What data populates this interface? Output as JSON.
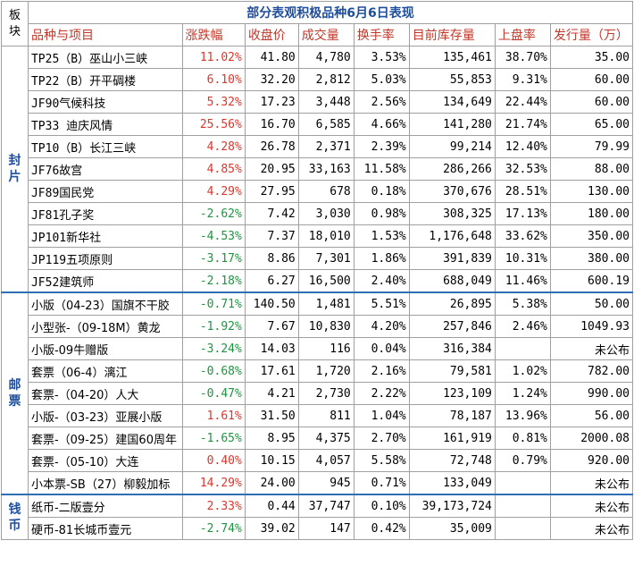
{
  "corner_label": "板块",
  "title": "部分表观积极品种6月6日表现",
  "headers": [
    "品种与项目",
    "涨跌幅",
    "收盘价",
    "成交量",
    "换手率",
    "目前库存量",
    "上盘率",
    "发行量（万）"
  ],
  "sections": [
    {
      "label": "封片",
      "rows": [
        {
          "name": "TP25（B）巫山小三峡",
          "change": "11.02%",
          "dir": "up",
          "close": "41.80",
          "volume": "4,780",
          "turnover": "3.53%",
          "stock": "135,461",
          "rate": "38.70%",
          "issue": "35.00"
        },
        {
          "name": "TP22（B）开平碉楼",
          "change": "6.10%",
          "dir": "up",
          "close": "32.20",
          "volume": "2,812",
          "turnover": "5.03%",
          "stock": "55,853",
          "rate": "9.31%",
          "issue": "60.00"
        },
        {
          "name": "JF90气候科技",
          "change": "5.32%",
          "dir": "up",
          "close": "17.23",
          "volume": "3,448",
          "turnover": "2.56%",
          "stock": "134,649",
          "rate": "22.44%",
          "issue": "60.00"
        },
        {
          "name": "TP33 迪庆风情",
          "change": "25.56%",
          "dir": "up",
          "close": "16.70",
          "volume": "6,585",
          "turnover": "4.66%",
          "stock": "141,280",
          "rate": "21.74%",
          "issue": "65.00"
        },
        {
          "name": "TP10（B）长江三峡",
          "change": "4.28%",
          "dir": "up",
          "close": "26.78",
          "volume": "2,371",
          "turnover": "2.39%",
          "stock": "99,214",
          "rate": "12.40%",
          "issue": "79.99"
        },
        {
          "name": "JF76故宫",
          "change": "4.85%",
          "dir": "up",
          "close": "20.95",
          "volume": "33,163",
          "turnover": "11.58%",
          "stock": "286,266",
          "rate": "32.53%",
          "issue": "88.00"
        },
        {
          "name": "JF89国民党",
          "change": "4.29%",
          "dir": "up",
          "close": "27.95",
          "volume": "678",
          "turnover": "0.18%",
          "stock": "370,676",
          "rate": "28.51%",
          "issue": "130.00"
        },
        {
          "name": "JF81孔子奖",
          "change": "-2.62%",
          "dir": "down",
          "close": "7.42",
          "volume": "3,030",
          "turnover": "0.98%",
          "stock": "308,325",
          "rate": "17.13%",
          "issue": "180.00"
        },
        {
          "name": "JP101新华社",
          "change": "-4.53%",
          "dir": "down",
          "close": "7.37",
          "volume": "18,010",
          "turnover": "1.53%",
          "stock": "1,176,648",
          "rate": "33.62%",
          "issue": "350.00"
        },
        {
          "name": "JP119五项原则",
          "change": "-3.17%",
          "dir": "down",
          "close": "8.86",
          "volume": "7,301",
          "turnover": "1.86%",
          "stock": "391,839",
          "rate": "10.31%",
          "issue": "380.00"
        },
        {
          "name": "JF52建筑师",
          "change": "-2.18%",
          "dir": "down",
          "close": "6.27",
          "volume": "16,500",
          "turnover": "2.40%",
          "stock": "688,049",
          "rate": "11.46%",
          "issue": "600.19"
        }
      ]
    },
    {
      "label": "邮票",
      "rows": [
        {
          "name": "小版（04-23）国旗不干胶",
          "change": "-0.71%",
          "dir": "down",
          "close": "140.50",
          "volume": "1,481",
          "turnover": "5.51%",
          "stock": "26,895",
          "rate": "5.38%",
          "issue": "50.00"
        },
        {
          "name": "小型张-（09-18M）黄龙",
          "change": "-1.92%",
          "dir": "down",
          "close": "7.67",
          "volume": "10,830",
          "turnover": "4.20%",
          "stock": "257,846",
          "rate": "2.46%",
          "issue": "1049.93"
        },
        {
          "name": "小版-09牛赠版",
          "change": "-3.24%",
          "dir": "down",
          "close": "14.03",
          "volume": "116",
          "turnover": "0.04%",
          "stock": "316,384",
          "rate": "",
          "issue": "未公布"
        },
        {
          "name": "套票（06-4）漓江",
          "change": "-0.68%",
          "dir": "down",
          "close": "17.61",
          "volume": "1,720",
          "turnover": "2.16%",
          "stock": "79,581",
          "rate": "1.02%",
          "issue": "782.00"
        },
        {
          "name": "套票-（04-20）人大",
          "change": "-0.47%",
          "dir": "down",
          "close": "4.21",
          "volume": "2,730",
          "turnover": "2.22%",
          "stock": "123,109",
          "rate": "1.24%",
          "issue": "990.00"
        },
        {
          "name": "小版-（03-23）亚展小版",
          "change": "1.61%",
          "dir": "up",
          "close": "31.50",
          "volume": "811",
          "turnover": "1.04%",
          "stock": "78,187",
          "rate": "13.96%",
          "issue": "56.00"
        },
        {
          "name": "套票-（09-25）建国60周年",
          "change": "-1.65%",
          "dir": "down",
          "close": "8.95",
          "volume": "4,375",
          "turnover": "2.70%",
          "stock": "161,919",
          "rate": "0.81%",
          "issue": "2000.08"
        },
        {
          "name": "套票-（05-10）大连",
          "change": "0.40%",
          "dir": "up",
          "close": "10.15",
          "volume": "4,057",
          "turnover": "5.58%",
          "stock": "72,748",
          "rate": "0.79%",
          "issue": "920.00"
        },
        {
          "name": "小本票-SB（27）柳毅加标",
          "change": "14.29%",
          "dir": "up",
          "close": "24.00",
          "volume": "945",
          "turnover": "0.71%",
          "stock": "133,049",
          "rate": "",
          "issue": "未公布"
        }
      ]
    },
    {
      "label": "钱币",
      "rows": [
        {
          "name": "纸币-二版壹分",
          "change": "2.33%",
          "dir": "up",
          "close": "0.44",
          "volume": "37,747",
          "turnover": "0.10%",
          "stock": "39,173,724",
          "rate": "",
          "issue": "未公布"
        },
        {
          "name": "硬币-81长城币壹元",
          "change": "-2.74%",
          "dir": "down",
          "close": "39.02",
          "volume": "147",
          "turnover": "0.42%",
          "stock": "35,009",
          "rate": "",
          "issue": "未公布"
        }
      ]
    }
  ]
}
